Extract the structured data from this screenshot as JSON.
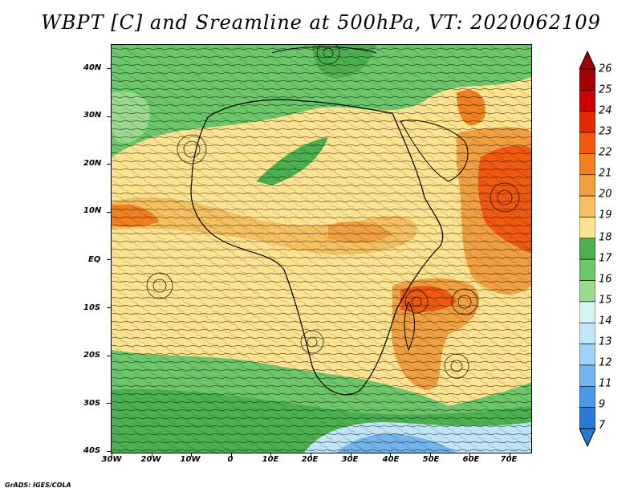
{
  "title": "WBPT [C] and Sreamline at 500hPa, VT: 2020062109",
  "credit": "GrADS: IGES/COLA",
  "map": {
    "lat_labels": [
      "40N",
      "30N",
      "20N",
      "10N",
      "EQ",
      "10S",
      "20S",
      "30S",
      "40S"
    ],
    "lon_labels": [
      "30W",
      "20W",
      "10W",
      "0",
      "10E",
      "20E",
      "30E",
      "40E",
      "50E",
      "60E",
      "70E"
    ]
  },
  "colorbar": {
    "labels": [
      "26",
      "25",
      "24",
      "23",
      "22",
      "21",
      "20",
      "19",
      "18",
      "17",
      "16",
      "15",
      "14",
      "13",
      "12",
      "11",
      "9",
      "7"
    ],
    "colors": [
      "#a50000",
      "#cc0000",
      "#e02a00",
      "#f05a10",
      "#f08020",
      "#f0a040",
      "#f5c060",
      "#fde38f",
      "#4cb050",
      "#6cc66a",
      "#9ad98e",
      "#d8f2f2",
      "#c0e4f8",
      "#9fd0f5",
      "#74b5ee",
      "#4a98e6",
      "#2a78d8"
    ]
  }
}
